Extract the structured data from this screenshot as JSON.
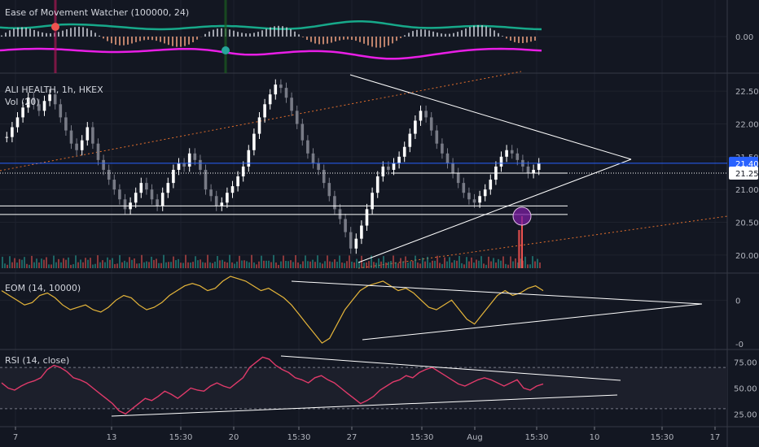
{
  "panes": {
    "eomw": {
      "title": "Ease of Movement Watcher (100000, 24)",
      "axis": [
        "0.00"
      ]
    },
    "main": {
      "title": "ALI HEALTH, 1h, HKEX",
      "vol": "Vol (20)",
      "axis": [
        "22.50",
        "22.00",
        "21.50",
        "21.00",
        "20.50",
        "20.00"
      ],
      "last_price": "21.40",
      "cur_price": "21.25"
    },
    "eom": {
      "title": "EOM (14, 10000)",
      "axis": [
        "0",
        "-0"
      ]
    },
    "rsi": {
      "title": "RSI (14, close)",
      "axis": [
        "75.00",
        "50.00",
        "25.00"
      ]
    }
  },
  "x_axis": [
    "7",
    "13",
    "15:30",
    "20",
    "15:30",
    "27",
    "15:30",
    "Aug",
    "15:30",
    "10",
    "15:30",
    "17"
  ],
  "colors": {
    "bg": "#131722",
    "grid": "#2a2e39",
    "up": "#26a69a",
    "down": "#ef5350",
    "magenta": "#e91ee6",
    "teal": "#17a98a",
    "eom": "#e5b53a",
    "rsi": "#e03a6a",
    "trend": "#ffffff",
    "blue_line": "#2962ff",
    "orange_dot": "#e46f2c"
  },
  "chart_data": [
    {
      "type": "line",
      "title": "Ease of Movement Watcher (100000, 24)",
      "ylim": [
        -1,
        1
      ],
      "series": []
    },
    {
      "type": "candlestick",
      "title": "ALI HEALTH, 1h, HKEX",
      "ylim": [
        19.8,
        22.7
      ],
      "y_ticks": [
        22.5,
        22.0,
        21.5,
        21.0,
        20.5,
        20.0
      ],
      "close": [
        21.8,
        21.95,
        22.1,
        22.25,
        22.4,
        22.3,
        22.2,
        22.35,
        22.45,
        22.3,
        22.1,
        21.9,
        21.7,
        21.6,
        21.75,
        21.95,
        21.7,
        21.45,
        21.3,
        21.15,
        21.0,
        20.85,
        20.7,
        20.8,
        20.95,
        21.1,
        21.0,
        20.85,
        20.75,
        20.95,
        21.1,
        21.3,
        21.4,
        21.35,
        21.55,
        21.45,
        21.3,
        21.0,
        20.9,
        20.75,
        20.8,
        20.95,
        21.05,
        21.2,
        21.35,
        21.6,
        21.85,
        22.1,
        22.3,
        22.45,
        22.6,
        22.55,
        22.4,
        22.2,
        22.0,
        21.75,
        21.55,
        21.4,
        21.3,
        21.1,
        20.9,
        20.7,
        20.55,
        20.35,
        20.1,
        20.25,
        20.45,
        20.7,
        20.95,
        21.2,
        21.35,
        21.3,
        21.4,
        21.5,
        21.65,
        21.85,
        22.05,
        22.2,
        22.1,
        21.9,
        21.7,
        21.55,
        21.4,
        21.25,
        21.1,
        20.95,
        20.85,
        20.8,
        20.9,
        21.0,
        21.15,
        21.35,
        21.5,
        21.6,
        21.55,
        21.45,
        21.35,
        21.25,
        21.3,
        21.4
      ],
      "volume_avg_label": "Vol (20)",
      "reference_lines": [
        21.4,
        21.25,
        20.75,
        20.6
      ],
      "last_price": 21.4,
      "current_price": 21.25
    },
    {
      "type": "line",
      "title": "EOM (14, 10000)",
      "ylim": [
        -0.1,
        0.05
      ],
      "y_ticks": [
        0
      ],
      "values": [
        0.02,
        0.01,
        0.0,
        -0.01,
        -0.005,
        0.01,
        0.015,
        0.005,
        -0.01,
        -0.02,
        -0.015,
        -0.01,
        -0.02,
        -0.025,
        -0.015,
        0.0,
        0.01,
        0.005,
        -0.01,
        -0.02,
        -0.015,
        -0.005,
        0.01,
        0.02,
        0.03,
        0.035,
        0.03,
        0.02,
        0.025,
        0.04,
        0.05,
        0.045,
        0.04,
        0.03,
        0.02,
        0.025,
        0.015,
        0.005,
        -0.01,
        -0.03,
        -0.05,
        -0.07,
        -0.09,
        -0.08,
        -0.05,
        -0.02,
        0.0,
        0.02,
        0.03,
        0.035,
        0.04,
        0.03,
        0.02,
        0.025,
        0.015,
        0.0,
        -0.015,
        -0.02,
        -0.01,
        0.0,
        -0.02,
        -0.04,
        -0.05,
        -0.03,
        -0.01,
        0.01,
        0.02,
        0.01,
        0.015,
        0.025,
        0.03,
        0.02
      ]
    },
    {
      "type": "line",
      "title": "RSI (14, close)",
      "ylim": [
        15,
        85
      ],
      "y_ticks": [
        75,
        50,
        25
      ],
      "values": [
        55,
        50,
        48,
        52,
        55,
        57,
        60,
        68,
        72,
        70,
        66,
        60,
        58,
        55,
        50,
        45,
        40,
        35,
        28,
        25,
        30,
        35,
        40,
        38,
        42,
        47,
        44,
        40,
        45,
        50,
        48,
        47,
        52,
        55,
        52,
        50,
        55,
        60,
        70,
        75,
        80,
        78,
        72,
        68,
        65,
        60,
        58,
        55,
        60,
        62,
        58,
        55,
        50,
        45,
        40,
        35,
        38,
        42,
        48,
        52,
        56,
        58,
        62,
        60,
        65,
        68,
        70,
        66,
        62,
        58,
        54,
        52,
        55,
        58,
        60,
        58,
        55,
        52,
        55,
        58,
        50,
        48,
        52,
        54
      ]
    }
  ]
}
